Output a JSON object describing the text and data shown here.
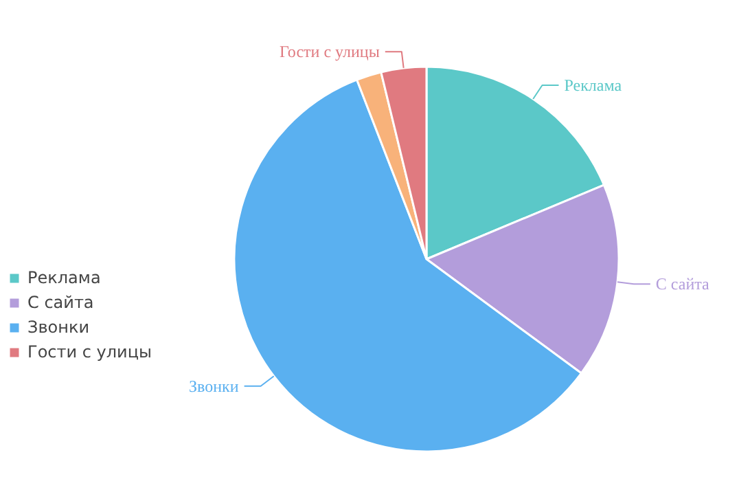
{
  "chart_data": {
    "type": "pie",
    "categories": [
      "Реклама",
      "С сайта",
      "Звонки",
      null,
      "Гости с улицы"
    ],
    "values": [
      18.7,
      16.4,
      59.0,
      2.1,
      3.8
    ],
    "colors": [
      "#5bc8c8",
      "#b39ddb",
      "#5ab0f0",
      "#f8b27a",
      "#e07a80"
    ],
    "legend": "left"
  }
}
